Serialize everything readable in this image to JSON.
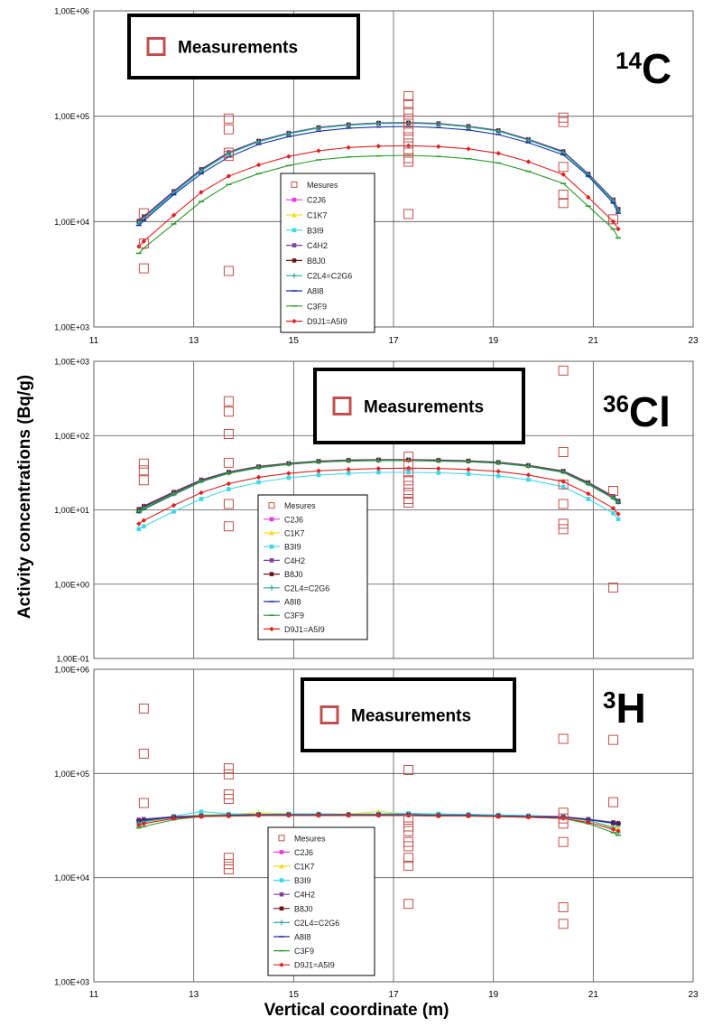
{
  "axis_labels": {
    "y": "Activity concentrations (Bq/g)",
    "x": "Vertical coordinate (m)"
  },
  "legend_title_entry": "Measurements",
  "legend_entries": [
    "Mesures",
    "C2J6",
    "C1K7",
    "B3I9",
    "C4H2",
    "B8J0",
    "C2L4=C2G6",
    "A8I8",
    "C3F9",
    "D9J1=A5I9"
  ],
  "colors": {
    "measurement": "#c0504d",
    "C2J6": "#e040e0",
    "C1K7": "#f0e020",
    "B3I9": "#40d8e8",
    "C4H2": "#8040a0",
    "B8J0": "#6b1818",
    "C2L4=C2G6": "#30a8a8",
    "A8I8": "#1c2fa0",
    "C3F9": "#2a9a2a",
    "D9J1=A5I9": "#e02020"
  },
  "chart_data": [
    {
      "type": "scatter",
      "panel_label": {
        "prefix": "14",
        "symbol": "C"
      },
      "xlim": [
        11,
        23
      ],
      "x_ticks": [
        "11",
        "13",
        "15",
        "17",
        "19",
        "21",
        "23"
      ],
      "ylim": [
        1000,
        1000000
      ],
      "log_y": true,
      "y_ticks": [
        "1,00E+03",
        "1,00E+04",
        "1,00E+05",
        "1,00E+06"
      ],
      "grid": true,
      "measurements": {
        "x": [
          12.0,
          12.0,
          12.0,
          13.7,
          13.7,
          13.7,
          13.7,
          13.7,
          17.3,
          17.3,
          17.3,
          17.3,
          17.3,
          17.3,
          17.3,
          17.3,
          17.3,
          17.3,
          17.3,
          17.3,
          20.4,
          20.4,
          20.4,
          20.4,
          20.4,
          21.4
        ],
        "y": [
          12000,
          6200,
          3600,
          95000,
          75000,
          45000,
          42000,
          3400,
          155000,
          130000,
          110000,
          95000,
          85000,
          73000,
          63000,
          55000,
          47000,
          40000,
          37000,
          11800,
          97000,
          88000,
          33000,
          18000,
          15000,
          10500
        ]
      },
      "model_x": [
        11.9,
        12.0,
        12.6,
        13.15,
        13.7,
        14.3,
        14.9,
        15.5,
        16.1,
        16.7,
        17.3,
        17.9,
        18.5,
        19.1,
        19.7,
        20.4,
        20.9,
        21.4,
        21.5
      ],
      "series": [
        {
          "name": "C2J6",
          "y": [
            10000,
            11000,
            19000,
            31000,
            45000,
            58000,
            69000,
            78000,
            83000,
            86000,
            86500,
            85000,
            80000,
            73000,
            60000,
            46000,
            28000,
            16000,
            13000
          ]
        },
        {
          "name": "C1K7",
          "y": [
            10000,
            11000,
            19000,
            31000,
            45000,
            58000,
            69000,
            78000,
            83000,
            86000,
            86500,
            85000,
            80000,
            73000,
            60000,
            46000,
            28000,
            16000,
            13000
          ]
        },
        {
          "name": "B3I9",
          "y": [
            9600,
            10500,
            18500,
            30000,
            44000,
            57000,
            68000,
            77000,
            82000,
            85000,
            85500,
            84000,
            79000,
            72000,
            59000,
            45000,
            27500,
            15500,
            12500
          ]
        },
        {
          "name": "C4H2",
          "y": [
            10200,
            11200,
            19500,
            31500,
            45500,
            58500,
            69500,
            78500,
            83500,
            86500,
            87000,
            85500,
            80500,
            73500,
            60500,
            46500,
            28500,
            16200,
            13200
          ]
        },
        {
          "name": "B8J0",
          "y": [
            10000,
            11000,
            19000,
            31000,
            45000,
            58000,
            69000,
            78000,
            83000,
            86000,
            86500,
            85000,
            80000,
            73000,
            60000,
            46000,
            28000,
            16000,
            13000
          ]
        },
        {
          "name": "C2L4=C2G6",
          "y": [
            9800,
            10800,
            18800,
            30500,
            44500,
            57500,
            68500,
            77500,
            82500,
            85500,
            86000,
            84500,
            79500,
            72500,
            59500,
            45500,
            27800,
            15800,
            12800
          ]
        },
        {
          "name": "A8I8",
          "y": [
            9200,
            10200,
            18000,
            28500,
            41000,
            54000,
            64000,
            72000,
            77000,
            79000,
            80000,
            78000,
            74000,
            67000,
            56000,
            43000,
            27000,
            15000,
            12000
          ]
        },
        {
          "name": "C3F9",
          "y": [
            5000,
            5600,
            9500,
            15500,
            22500,
            28500,
            34000,
            38500,
            41000,
            42000,
            42500,
            41500,
            39500,
            36000,
            30000,
            23000,
            14000,
            8500,
            7000
          ]
        },
        {
          "name": "D9J1=A5I9",
          "y": [
            5800,
            6500,
            11500,
            19000,
            27000,
            34500,
            41500,
            47000,
            50500,
            52000,
            52500,
            51500,
            49000,
            44500,
            37000,
            28000,
            17000,
            10000,
            8500
          ]
        }
      ]
    },
    {
      "type": "scatter",
      "panel_label": {
        "prefix": "36",
        "symbol": "Cl"
      },
      "xlim": [
        11,
        23
      ],
      "x_ticks": [],
      "ylim": [
        0.1,
        1000
      ],
      "log_y": true,
      "y_ticks": [
        "1,00E-01",
        "1,00E+00",
        "1,00E+01",
        "1,00E+02",
        "1,00E+03"
      ],
      "grid": true,
      "measurements": {
        "x": [
          12.0,
          12.0,
          12.0,
          13.7,
          13.7,
          13.7,
          13.7,
          13.7,
          13.7,
          17.3,
          17.3,
          17.3,
          17.3,
          17.3,
          17.3,
          17.3,
          17.3,
          20.4,
          20.4,
          20.4,
          20.4,
          20.4,
          20.4,
          21.4,
          21.4
        ],
        "y": [
          42,
          34,
          25,
          290,
          210,
          105,
          43,
          12,
          6,
          52,
          40,
          32,
          25,
          21,
          17,
          14,
          12.5,
          750,
          60,
          22,
          12,
          6.5,
          5.5,
          18,
          0.9
        ]
      },
      "model_x": [
        11.9,
        12.0,
        12.6,
        13.15,
        13.7,
        14.3,
        14.9,
        15.5,
        16.1,
        16.7,
        17.3,
        17.9,
        18.5,
        19.1,
        19.7,
        20.4,
        20.9,
        21.4,
        21.5
      ],
      "series": [
        {
          "name": "C2J6",
          "y": [
            10,
            11,
            17,
            25,
            32,
            38,
            42,
            45,
            46.5,
            47,
            47,
            46.5,
            45.5,
            43.5,
            39.5,
            33,
            23,
            15,
            13
          ]
        },
        {
          "name": "C1K7",
          "y": [
            10,
            11,
            17,
            25,
            32,
            38,
            42,
            45,
            46.5,
            47,
            47,
            46.5,
            45.5,
            43.5,
            39.5,
            33,
            23,
            15,
            13
          ]
        },
        {
          "name": "B3I9",
          "y": [
            5.5,
            6,
            9.5,
            14,
            19,
            23.5,
            27,
            29.5,
            31,
            32,
            32,
            31.5,
            30.5,
            28.5,
            25.5,
            20.5,
            14,
            9,
            7.5
          ]
        },
        {
          "name": "C4H2",
          "y": [
            10.3,
            11.3,
            17.5,
            25.5,
            32.5,
            38.5,
            42.5,
            45.5,
            47,
            47.5,
            47.5,
            47,
            46,
            44,
            40,
            33.5,
            23.5,
            15.3,
            13.3
          ]
        },
        {
          "name": "B8J0",
          "y": [
            10,
            11,
            17,
            25,
            32,
            38,
            42,
            45,
            46.5,
            47,
            47,
            46.5,
            45.5,
            43.5,
            39.5,
            33,
            23,
            15,
            13
          ]
        },
        {
          "name": "C2L4=C2G6",
          "y": [
            9.6,
            10.6,
            16.5,
            24.5,
            31.5,
            37.5,
            41.5,
            44.5,
            46,
            46.5,
            46.5,
            46,
            45,
            43,
            39,
            32.5,
            22.5,
            14.7,
            12.7
          ]
        },
        {
          "name": "A8I8",
          "y": [
            9.2,
            10.2,
            16,
            24,
            31,
            37,
            41,
            44,
            45.5,
            46,
            46,
            45.5,
            44.5,
            42.5,
            38.5,
            32,
            22,
            14.3,
            12.3
          ]
        },
        {
          "name": "C3F9",
          "y": [
            9.4,
            10.4,
            16.2,
            24.2,
            31.2,
            37.2,
            41.2,
            44.2,
            45.7,
            46.2,
            46.2,
            45.7,
            44.7,
            42.7,
            38.7,
            32.2,
            22.2,
            14.5,
            12.5
          ]
        },
        {
          "name": "D9J1=A5I9",
          "y": [
            6.5,
            7.2,
            11.5,
            17,
            22.5,
            27.5,
            31,
            33.5,
            35,
            36,
            36.5,
            36,
            35,
            33,
            29.5,
            24,
            16.5,
            10.5,
            8.8
          ]
        }
      ]
    },
    {
      "type": "scatter",
      "panel_label": {
        "prefix": "3",
        "symbol": "H"
      },
      "xlim": [
        11,
        23
      ],
      "x_ticks": [
        "11",
        "13",
        "15",
        "17",
        "19",
        "21",
        "23"
      ],
      "ylim": [
        1000,
        1000000
      ],
      "log_y": true,
      "y_ticks": [
        "1,00E+03",
        "1,00E+04",
        "1,00E+05",
        "1,00E+06"
      ],
      "grid": true,
      "measurements": {
        "x": [
          12.0,
          12.0,
          12.0,
          13.7,
          13.7,
          13.7,
          13.7,
          13.7,
          13.7,
          13.7,
          17.3,
          17.3,
          17.3,
          17.3,
          17.3,
          17.3,
          17.3,
          17.3,
          17.3,
          20.4,
          20.4,
          20.4,
          20.4,
          20.4,
          20.4,
          20.4,
          21.4,
          21.4
        ],
        "y": [
          420000,
          155000,
          52000,
          112000,
          98000,
          63000,
          57000,
          15500,
          12000,
          13500,
          108000,
          36000,
          31000,
          28000,
          22000,
          20000,
          15500,
          5600,
          13000,
          215000,
          42000,
          37000,
          33000,
          22000,
          5200,
          3600,
          210000,
          53000
        ]
      },
      "model_x": [
        11.9,
        12.0,
        12.6,
        13.15,
        13.7,
        14.3,
        14.9,
        15.5,
        16.1,
        16.7,
        17.3,
        17.9,
        18.5,
        19.1,
        19.7,
        20.4,
        20.9,
        21.4,
        21.5
      ],
      "series": [
        {
          "name": "C2J6",
          "y": [
            34000,
            35000,
            38000,
            39500,
            40000,
            40500,
            40500,
            40500,
            40500,
            40500,
            40500,
            40000,
            40000,
            39500,
            39000,
            38000,
            36000,
            33000,
            32000
          ]
        },
        {
          "name": "C1K7",
          "y": [
            33000,
            34000,
            38000,
            40000,
            40500,
            42000,
            41000,
            41000,
            41000,
            43000,
            41000,
            40000,
            40000,
            39500,
            39000,
            38000,
            35000,
            31000,
            30000
          ]
        },
        {
          "name": "B3I9",
          "y": [
            32000,
            34000,
            39000,
            43000,
            41000,
            40500,
            41000,
            41000,
            40500,
            41000,
            41500,
            41000,
            40500,
            40000,
            39500,
            38500,
            36000,
            33000,
            32000
          ]
        },
        {
          "name": "C4H2",
          "y": [
            36000,
            36500,
            38500,
            39500,
            40000,
            40500,
            40500,
            40500,
            40500,
            40500,
            40500,
            40000,
            40000,
            39500,
            39000,
            38500,
            36500,
            34000,
            33500
          ]
        },
        {
          "name": "B8J0",
          "y": [
            35000,
            35500,
            38000,
            39000,
            39500,
            40000,
            40000,
            40000,
            40000,
            40000,
            40000,
            39500,
            39500,
            39000,
            38500,
            38000,
            36000,
            33500,
            33000
          ]
        },
        {
          "name": "C2L4=C2G6",
          "y": [
            33500,
            34500,
            38000,
            39500,
            40000,
            40500,
            40500,
            40500,
            40500,
            40500,
            40500,
            40000,
            40000,
            39500,
            39000,
            38000,
            35500,
            30000,
            27000
          ]
        },
        {
          "name": "A8I8",
          "y": [
            35500,
            36000,
            38000,
            39000,
            39500,
            40000,
            40000,
            40000,
            40000,
            40000,
            40000,
            39500,
            39500,
            39000,
            38500,
            38000,
            36000,
            33500,
            33000
          ]
        },
        {
          "name": "C3F9",
          "y": [
            30000,
            31000,
            36000,
            38500,
            39000,
            39500,
            39500,
            39500,
            39500,
            39500,
            39500,
            39000,
            39000,
            38500,
            38000,
            37000,
            33000,
            27000,
            25500
          ]
        },
        {
          "name": "D9J1=A5I9",
          "y": [
            32000,
            33000,
            37000,
            38500,
            39000,
            39500,
            39500,
            39500,
            39500,
            39500,
            39500,
            39000,
            39000,
            38500,
            38000,
            37000,
            34000,
            29000,
            28000
          ]
        }
      ]
    }
  ]
}
